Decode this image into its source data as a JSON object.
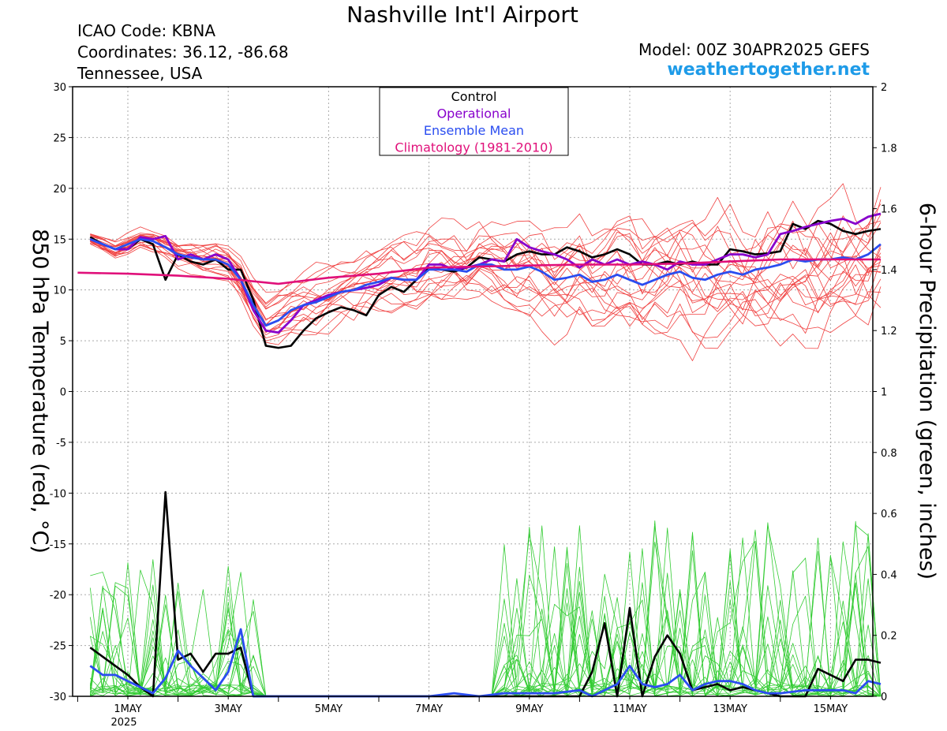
{
  "header": {
    "title": "Nashville Int'l Airport",
    "icao": "ICAO Code: KBNA",
    "coords": "Coordinates: 36.12, -86.68",
    "region": "Tennessee, USA",
    "model": "Model: 00Z 30APR2025 GEFS",
    "site": "weathertogether.net"
  },
  "colors": {
    "control": "#000000",
    "operational": "#8800cc",
    "ensemble_mean": "#2a4df0",
    "climatology": "#e0107a",
    "members_temp": "#f04040",
    "members_precip": "#33cc33",
    "site": "#1e9be8"
  },
  "chart_data": {
    "type": "line",
    "title": "Nashville Int'l Airport",
    "ylabel_left": "850 hPa Temperature (red, °C)",
    "ylabel_right": "6-hour Precipitation (green, inches)",
    "xlim_days": [
      "29APR2025 18Z",
      "16MAY2025 00Z"
    ],
    "x_ticks": [
      {
        "label": "1MAY",
        "day": 1
      },
      {
        "label": "3MAY",
        "day": 3
      },
      {
        "label": "5MAY",
        "day": 5
      },
      {
        "label": "7MAY",
        "day": 7
      },
      {
        "label": "9MAY",
        "day": 9
      },
      {
        "label": "11MAY",
        "day": 11
      },
      {
        "label": "13MAY",
        "day": 13
      },
      {
        "label": "15MAY",
        "day": 15
      }
    ],
    "x_year_label": "2025",
    "ylim_left": [
      -30,
      30
    ],
    "y_ticks_left": [
      30,
      25,
      20,
      15,
      10,
      5,
      0,
      -5,
      -10,
      -15,
      -20,
      -25,
      -30
    ],
    "ylim_right": [
      0,
      2
    ],
    "y_ticks_right": [
      "2",
      "1.8",
      "1.6",
      "1.4",
      "1.2",
      "1",
      "0.8",
      "0.6",
      "0.4",
      "0.2",
      "0"
    ],
    "legend": [
      "Control",
      "Operational",
      "Ensemble Mean",
      "Climatology (1981-2010)"
    ],
    "legend_position": "top-center",
    "series": [
      {
        "name": "Control",
        "kind": "temperature",
        "x_day": [
          0.25,
          0.5,
          0.75,
          1,
          1.25,
          1.5,
          1.75,
          2,
          2.25,
          2.5,
          2.75,
          3,
          3.25,
          3.5,
          3.75,
          4,
          4.25,
          4.5,
          4.75,
          5,
          5.25,
          5.5,
          5.75,
          6,
          6.25,
          6.5,
          6.75,
          7,
          7.25,
          7.5,
          7.75,
          8,
          8.25,
          8.5,
          8.75,
          9,
          9.25,
          9.5,
          9.75,
          10,
          10.25,
          10.5,
          10.75,
          11,
          11.25,
          11.5,
          11.75,
          12,
          12.25,
          12.5,
          12.75,
          13,
          13.25,
          13.5,
          13.75,
          14,
          14.25,
          14.5,
          14.75,
          15,
          15.25,
          15.5,
          15.75,
          16
        ],
        "values": [
          15.2,
          14.5,
          14.0,
          14.0,
          15.0,
          14.5,
          11.0,
          13.5,
          12.8,
          12.5,
          13.0,
          12.0,
          12.0,
          9.0,
          4.5,
          4.3,
          4.5,
          6.0,
          7.2,
          7.8,
          8.3,
          8.0,
          7.5,
          9.5,
          10.3,
          9.8,
          11.0,
          12.2,
          12.0,
          11.8,
          12.2,
          13.2,
          13.0,
          12.8,
          13.5,
          13.8,
          13.5,
          13.5,
          14.2,
          13.8,
          13.2,
          13.5,
          14.0,
          13.5,
          12.5,
          12.5,
          12.8,
          12.5,
          12.8,
          12.5,
          12.5,
          14.0,
          13.8,
          13.5,
          13.6,
          13.8,
          16.5,
          16.0,
          16.8,
          16.5,
          15.8,
          15.5,
          15.8,
          16.0
        ]
      },
      {
        "name": "Operational",
        "kind": "temperature",
        "x_day": [
          0.25,
          0.5,
          0.75,
          1,
          1.25,
          1.5,
          1.75,
          2,
          2.25,
          2.5,
          2.75,
          3,
          3.25,
          3.5,
          3.75,
          4,
          4.25,
          4.5,
          4.75,
          5,
          5.25,
          5.5,
          5.75,
          6,
          6.25,
          6.5,
          6.75,
          7,
          7.25,
          7.5,
          7.75,
          8,
          8.25,
          8.5,
          8.75,
          9,
          9.25,
          9.5,
          9.75,
          10,
          10.25,
          10.5,
          10.75,
          11,
          11.25,
          11.5,
          11.75,
          12,
          12.25,
          12.5,
          12.75,
          13,
          13.25,
          13.5,
          13.75,
          14,
          14.25,
          14.5,
          14.75,
          15,
          15.25,
          15.5,
          15.75,
          16
        ],
        "values": [
          15.0,
          14.5,
          14.0,
          14.0,
          15.2,
          15.0,
          15.3,
          13.0,
          13.5,
          13.0,
          13.5,
          13.0,
          11.0,
          8.0,
          6.0,
          5.8,
          7.0,
          8.5,
          9.0,
          9.5,
          9.8,
          10.0,
          10.2,
          10.5,
          11.2,
          11.0,
          11.0,
          12.5,
          12.5,
          12.0,
          12.2,
          12.5,
          13.0,
          12.8,
          15.0,
          14.2,
          13.8,
          13.5,
          13.0,
          12.2,
          13.0,
          12.5,
          13.0,
          12.5,
          12.8,
          12.5,
          12.0,
          12.8,
          12.5,
          12.5,
          13.0,
          13.5,
          13.5,
          13.2,
          13.5,
          15.5,
          15.8,
          16.2,
          16.5,
          16.8,
          17.0,
          16.5,
          17.2,
          17.5
        ]
      },
      {
        "name": "Ensemble Mean",
        "kind": "temperature",
        "x_day": [
          0.25,
          0.5,
          0.75,
          1,
          1.25,
          1.5,
          1.75,
          2,
          2.25,
          2.5,
          2.75,
          3,
          3.25,
          3.5,
          3.75,
          4,
          4.25,
          4.5,
          4.75,
          5,
          5.25,
          5.5,
          5.75,
          6,
          6.25,
          6.5,
          6.75,
          7,
          7.25,
          7.5,
          7.75,
          8,
          8.25,
          8.5,
          8.75,
          9,
          9.25,
          9.5,
          9.75,
          10,
          10.25,
          10.5,
          10.75,
          11,
          11.25,
          11.5,
          11.75,
          12,
          12.25,
          12.5,
          12.75,
          13,
          13.25,
          13.5,
          13.75,
          14,
          14.25,
          14.5,
          14.75,
          15,
          15.25,
          15.5,
          15.75,
          16
        ],
        "values": [
          15.0,
          14.5,
          14.0,
          14.5,
          15.0,
          14.8,
          14.2,
          13.5,
          13.2,
          13.0,
          13.0,
          12.5,
          11.0,
          8.5,
          6.5,
          7.0,
          8.0,
          8.5,
          8.8,
          9.3,
          9.8,
          10.0,
          10.5,
          10.8,
          11.2,
          11.0,
          11.0,
          12.0,
          12.0,
          12.0,
          11.8,
          12.5,
          12.5,
          12.0,
          12.0,
          12.3,
          11.8,
          11.0,
          11.2,
          11.5,
          10.8,
          11.0,
          11.5,
          11.0,
          10.5,
          11.0,
          11.5,
          11.8,
          11.2,
          11.0,
          11.5,
          11.8,
          11.5,
          12.0,
          12.2,
          12.5,
          13.0,
          12.8,
          13.0,
          13.0,
          13.2,
          13.0,
          13.5,
          14.5
        ]
      },
      {
        "name": "Climatology (1981-2010)",
        "kind": "temperature",
        "x_day": [
          0,
          1,
          2,
          3,
          4,
          5,
          6,
          7,
          8,
          9,
          10,
          11,
          12,
          13,
          14,
          15,
          16
        ],
        "values": [
          11.7,
          11.6,
          11.4,
          11.1,
          10.6,
          11.2,
          11.6,
          12.2,
          12.3,
          12.4,
          12.5,
          12.5,
          12.6,
          12.8,
          13.0,
          13.0,
          13.0
        ]
      },
      {
        "name": "Control",
        "kind": "precipitation",
        "x_day": [
          0.25,
          0.5,
          0.75,
          1,
          1.25,
          1.5,
          1.75,
          2,
          2.25,
          2.5,
          2.75,
          3,
          3.25,
          3.5,
          3.75,
          4,
          6,
          8,
          9,
          9.5,
          10,
          10.25,
          10.5,
          10.75,
          11,
          11.25,
          11.5,
          11.75,
          12,
          12.25,
          12.5,
          12.75,
          13,
          13.25,
          13.5,
          13.75,
          14,
          14.25,
          14.5,
          14.75,
          15,
          15.25,
          15.5,
          15.75,
          16
        ],
        "values": [
          0.16,
          0.13,
          0.1,
          0.07,
          0.03,
          0.0,
          0.67,
          0.12,
          0.14,
          0.08,
          0.14,
          0.14,
          0.16,
          0.0,
          0.0,
          0.0,
          0.0,
          0.0,
          0.0,
          0.0,
          0.0,
          0.08,
          0.24,
          0.0,
          0.29,
          0.0,
          0.13,
          0.2,
          0.14,
          0.02,
          0.03,
          0.04,
          0.02,
          0.03,
          0.02,
          0.01,
          0.0,
          0.0,
          0.0,
          0.09,
          0.07,
          0.05,
          0.12,
          0.12,
          0.11
        ]
      },
      {
        "name": "Ensemble Mean",
        "kind": "precipitation",
        "x_day": [
          0.25,
          0.5,
          0.75,
          1,
          1.25,
          1.5,
          1.75,
          2,
          2.25,
          2.5,
          2.75,
          3,
          3.25,
          3.5,
          4,
          5,
          6,
          7,
          7.5,
          8,
          8.5,
          9,
          9.5,
          10,
          10.25,
          10.5,
          10.75,
          11,
          11.25,
          11.5,
          11.75,
          12,
          12.25,
          12.5,
          12.75,
          13,
          13.25,
          13.5,
          13.75,
          14,
          14.5,
          14.75,
          15,
          15.25,
          15.5,
          15.75,
          16
        ],
        "values": [
          0.1,
          0.07,
          0.07,
          0.05,
          0.03,
          0.01,
          0.06,
          0.15,
          0.1,
          0.06,
          0.02,
          0.08,
          0.22,
          0.0,
          0.0,
          0.0,
          0.0,
          0.0,
          0.01,
          0.0,
          0.01,
          0.01,
          0.01,
          0.02,
          0.0,
          0.02,
          0.04,
          0.1,
          0.04,
          0.03,
          0.04,
          0.07,
          0.02,
          0.04,
          0.05,
          0.05,
          0.04,
          0.02,
          0.01,
          0.01,
          0.02,
          0.02,
          0.02,
          0.02,
          0.01,
          0.05,
          0.04
        ]
      }
    ]
  }
}
